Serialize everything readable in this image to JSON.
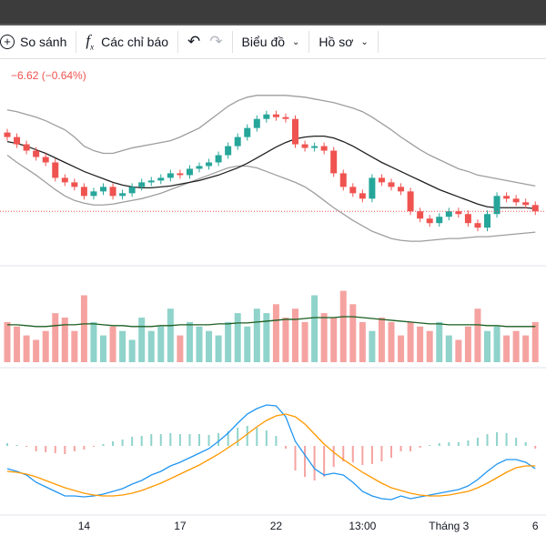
{
  "toolbar": {
    "compare": "So sánh",
    "indicators": "Các chỉ báo",
    "chart": "Biểu đồ",
    "profile": "Hồ sơ"
  },
  "change": "−6.62 (−0.64%)",
  "chart_data": [
    {
      "type": "candlestick",
      "up_color": "#26a69a",
      "down_color": "#ef5350",
      "ylim": [
        15,
        235
      ],
      "categories": [
        null,
        null,
        null,
        null,
        null,
        null,
        null,
        null,
        "14",
        null,
        null,
        null,
        null,
        null,
        null,
        null,
        null,
        null,
        "17",
        null,
        null,
        null,
        null,
        null,
        null,
        null,
        null,
        null,
        "22",
        null,
        null,
        null,
        null,
        null,
        null,
        null,
        null,
        "13:00",
        null,
        null,
        null,
        null,
        null,
        null,
        null,
        null,
        "Tháng 3",
        null,
        null,
        null,
        null,
        null,
        null,
        null,
        null,
        "6"
      ],
      "open": [
        155,
        150,
        142,
        135,
        128,
        122,
        105,
        100,
        95,
        85,
        90,
        95,
        85,
        88,
        95,
        100,
        102,
        105,
        110,
        108,
        115,
        118,
        122,
        130,
        140,
        150,
        160,
        170,
        175,
        172,
        170,
        142,
        138,
        140,
        135,
        110,
        95,
        88,
        82,
        105,
        100,
        95,
        90,
        68,
        60,
        55,
        62,
        68,
        65,
        55,
        50,
        65,
        85,
        82,
        78,
        75
      ],
      "high": [
        159,
        154,
        146,
        139,
        132,
        126,
        109,
        104,
        99,
        94,
        99,
        99,
        92,
        99,
        104,
        106,
        109,
        114,
        114,
        119,
        122,
        126,
        134,
        144,
        154,
        164,
        174,
        179,
        179,
        176,
        174,
        146,
        144,
        144,
        139,
        114,
        99,
        92,
        109,
        109,
        104,
        99,
        94,
        72,
        64,
        66,
        72,
        72,
        69,
        59,
        69,
        89,
        89,
        86,
        82,
        79
      ],
      "low": [
        146,
        138,
        131,
        124,
        118,
        101,
        96,
        91,
        81,
        81,
        86,
        81,
        81,
        84,
        91,
        96,
        98,
        101,
        104,
        104,
        111,
        114,
        118,
        126,
        136,
        146,
        156,
        166,
        168,
        166,
        138,
        134,
        134,
        131,
        106,
        91,
        84,
        78,
        78,
        96,
        91,
        86,
        64,
        56,
        51,
        51,
        58,
        61,
        51,
        46,
        46,
        61,
        78,
        74,
        71,
        64
      ],
      "close": [
        150,
        142,
        135,
        128,
        122,
        105,
        100,
        95,
        85,
        90,
        95,
        85,
        88,
        95,
        100,
        102,
        105,
        110,
        108,
        115,
        118,
        122,
        130,
        140,
        150,
        160,
        170,
        175,
        172,
        170,
        142,
        138,
        140,
        135,
        110,
        95,
        88,
        82,
        105,
        100,
        95,
        90,
        68,
        60,
        55,
        62,
        68,
        65,
        55,
        50,
        65,
        85,
        82,
        78,
        75,
        68
      ],
      "series": [
        {
          "color": "#9e9e9e",
          "values": [
            180,
            178,
            175,
            172,
            168,
            163,
            158,
            150,
            140,
            135,
            132,
            132,
            135,
            138,
            140,
            142,
            144,
            146,
            150,
            155,
            160,
            168,
            176,
            184,
            190,
            194,
            196,
            196,
            196,
            196,
            195,
            194,
            192,
            190,
            188,
            185,
            182,
            178,
            172,
            165,
            158,
            150,
            143,
            136,
            130,
            125,
            120,
            115,
            112,
            108,
            106,
            104,
            102,
            100,
            98,
            96
          ]
        },
        {
          "color": "#9e9e9e",
          "values": [
            130,
            122,
            115,
            108,
            100,
            92,
            85,
            80,
            77,
            75,
            75,
            76,
            78,
            80,
            82,
            85,
            88,
            92,
            96,
            100,
            104,
            108,
            112,
            116,
            118,
            118,
            116,
            112,
            108,
            104,
            100,
            95,
            88,
            80,
            72,
            65,
            58,
            52,
            46,
            42,
            38,
            36,
            35,
            35,
            36,
            37,
            38,
            38,
            39,
            40,
            40,
            41,
            42,
            43,
            44,
            45
          ]
        },
        {
          "color": "#212121",
          "values": [
            145,
            143,
            140,
            136,
            132,
            127,
            122,
            117,
            112,
            108,
            104,
            100,
            97,
            95,
            94,
            94,
            95,
            96,
            98,
            100,
            102,
            105,
            108,
            112,
            116,
            121,
            127,
            133,
            139,
            144,
            148,
            150,
            151,
            151,
            149,
            145,
            140,
            134,
            128,
            122,
            117,
            112,
            107,
            102,
            97,
            92,
            88,
            84,
            80,
            76,
            73,
            72,
            72,
            72,
            72,
            71
          ]
        }
      ]
    },
    {
      "type": "volume",
      "ylim": [
        0,
        100
      ],
      "up_color": "#8fd3cb",
      "down_color": "#f5a3a1",
      "values": [
        45,
        40,
        30,
        25,
        35,
        55,
        50,
        35,
        75,
        45,
        30,
        40,
        35,
        25,
        50,
        35,
        40,
        60,
        30,
        45,
        40,
        35,
        30,
        45,
        55,
        40,
        60,
        55,
        65,
        50,
        60,
        45,
        75,
        55,
        50,
        80,
        65,
        45,
        35,
        50,
        45,
        30,
        45,
        40,
        35,
        45,
        30,
        25,
        40,
        60,
        35,
        40,
        30,
        35,
        30,
        45
      ],
      "series": [
        {
          "color": "#1b5e20",
          "values": [
            42,
            42,
            41,
            40,
            40,
            41,
            42,
            42,
            43,
            43,
            42,
            41,
            41,
            40,
            40,
            40,
            41,
            41,
            42,
            42,
            42,
            42,
            43,
            43,
            44,
            44,
            45,
            46,
            47,
            48,
            48,
            49,
            50,
            50,
            50,
            51,
            51,
            50,
            49,
            48,
            47,
            46,
            45,
            44,
            43,
            43,
            42,
            42,
            42,
            42,
            41,
            41,
            40,
            40,
            40,
            40
          ]
        }
      ]
    },
    {
      "type": "macd",
      "ylim": [
        -0.75,
        0.8
      ],
      "up_color": "#8fd3cb",
      "down_color": "#f5a3a1",
      "histogram": [
        0.03,
        0.01,
        -0.01,
        -0.06,
        -0.07,
        -0.08,
        -0.09,
        -0.06,
        -0.04,
        -0.01,
        0.02,
        0.05,
        0.07,
        0.1,
        0.11,
        0.13,
        0.13,
        0.14,
        0.13,
        0.13,
        0.13,
        0.12,
        0.14,
        0.16,
        0.2,
        0.22,
        0.2,
        0.17,
        0.11,
        -0.03,
        -0.27,
        -0.34,
        -0.38,
        -0.34,
        -0.23,
        -0.17,
        -0.18,
        -0.21,
        -0.2,
        -0.17,
        -0.13,
        -0.06,
        -0.06,
        -0.02,
        0.01,
        0.03,
        0.04,
        0.04,
        0.06,
        0.09,
        0.13,
        0.15,
        0.14,
        0.09,
        0.04,
        -0.03
      ],
      "series": [
        {
          "color": "#2196f3",
          "values": [
            -0.25,
            -0.28,
            -0.32,
            -0.4,
            -0.45,
            -0.5,
            -0.55,
            -0.55,
            -0.56,
            -0.55,
            -0.53,
            -0.5,
            -0.47,
            -0.42,
            -0.38,
            -0.32,
            -0.28,
            -0.22,
            -0.18,
            -0.13,
            -0.08,
            -0.03,
            0.05,
            0.14,
            0.25,
            0.35,
            0.41,
            0.45,
            0.44,
            0.32,
            0.05,
            -0.1,
            -0.25,
            -0.32,
            -0.3,
            -0.32,
            -0.4,
            -0.5,
            -0.55,
            -0.58,
            -0.59,
            -0.55,
            -0.58,
            -0.56,
            -0.54,
            -0.52,
            -0.5,
            -0.48,
            -0.44,
            -0.37,
            -0.28,
            -0.2,
            -0.15,
            -0.15,
            -0.18,
            -0.25
          ]
        },
        {
          "color": "#ff9800",
          "values": [
            -0.28,
            -0.29,
            -0.31,
            -0.34,
            -0.38,
            -0.42,
            -0.46,
            -0.49,
            -0.52,
            -0.54,
            -0.55,
            -0.55,
            -0.54,
            -0.52,
            -0.49,
            -0.45,
            -0.41,
            -0.36,
            -0.31,
            -0.26,
            -0.21,
            -0.15,
            -0.09,
            -0.02,
            0.05,
            0.13,
            0.21,
            0.28,
            0.33,
            0.35,
            0.32,
            0.24,
            0.13,
            0.02,
            -0.07,
            -0.15,
            -0.22,
            -0.29,
            -0.35,
            -0.41,
            -0.46,
            -0.49,
            -0.52,
            -0.54,
            -0.55,
            -0.55,
            -0.54,
            -0.52,
            -0.5,
            -0.46,
            -0.41,
            -0.35,
            -0.29,
            -0.24,
            -0.22,
            -0.22
          ]
        }
      ]
    }
  ]
}
